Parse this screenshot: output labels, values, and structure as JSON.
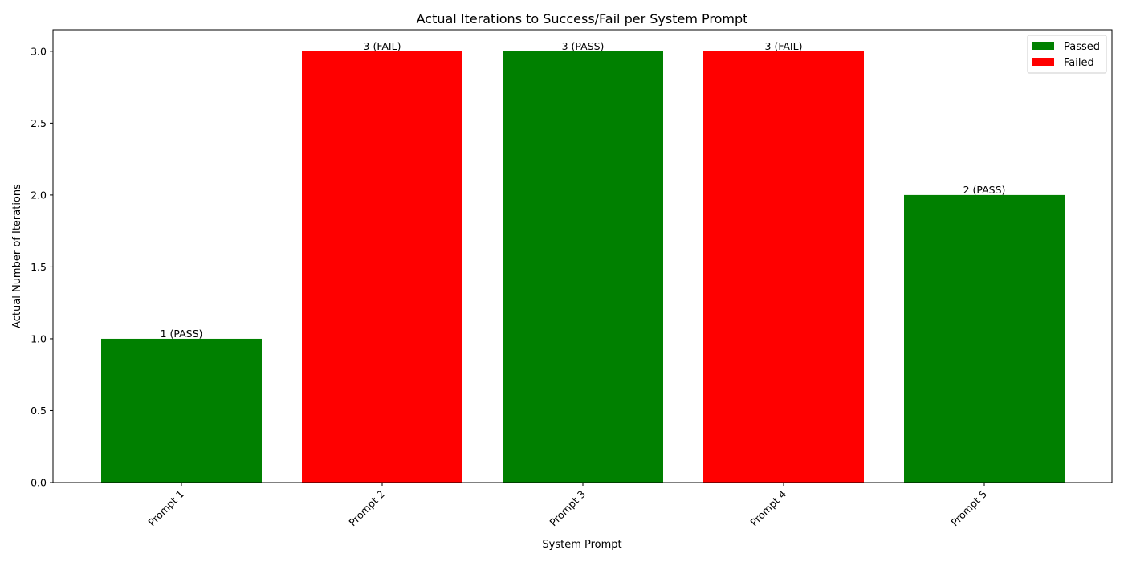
{
  "chart_data": {
    "type": "bar",
    "title": "Actual Iterations to Success/Fail per System Prompt",
    "xlabel": "System Prompt",
    "ylabel": "Actual Number of Iterations",
    "categories": [
      "Prompt 1",
      "Prompt 2",
      "Prompt 3",
      "Prompt 4",
      "Prompt 5"
    ],
    "values": [
      1,
      3,
      3,
      3,
      2
    ],
    "status": [
      "pass",
      "fail",
      "pass",
      "fail",
      "pass"
    ],
    "data_labels": [
      "1 (PASS)",
      "3 (FAIL)",
      "3 (PASS)",
      "3 (FAIL)",
      "2 (PASS)"
    ],
    "ylim": [
      0,
      3.15
    ],
    "yticks": [
      0.0,
      0.5,
      1.0,
      1.5,
      2.0,
      2.5,
      3.0
    ],
    "ytick_labels": [
      "0.0",
      "0.5",
      "1.0",
      "1.5",
      "2.0",
      "2.5",
      "3.0"
    ],
    "grid": false,
    "legend": {
      "placement": "top-right",
      "entries": [
        {
          "label": "Passed",
          "color": "#008000"
        },
        {
          "label": "Failed",
          "color": "#ff0000"
        }
      ]
    },
    "colors": {
      "pass": "#008000",
      "fail": "#ff0000"
    }
  }
}
